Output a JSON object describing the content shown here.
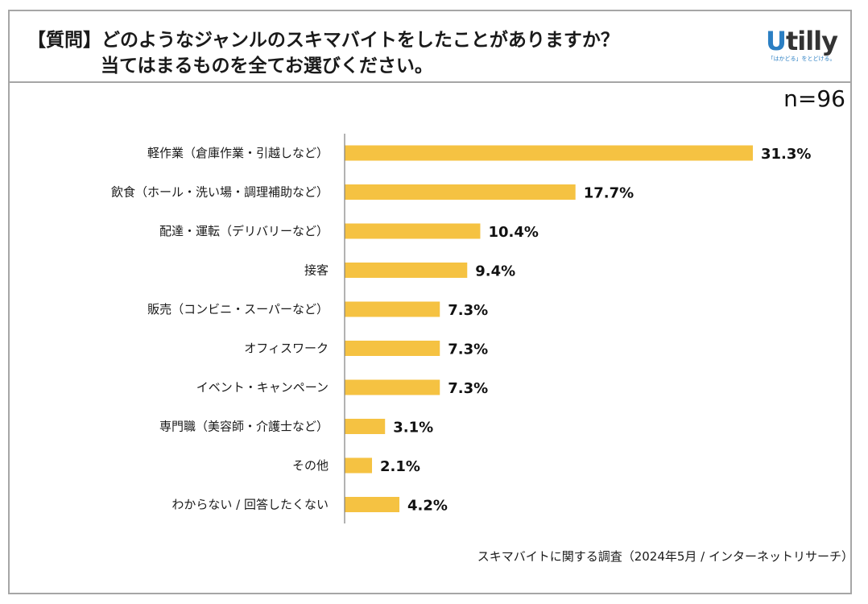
{
  "header": {
    "title_line1": "【質問】どのようなジャンルのスキマバイトをしたことがありますか？",
    "title_line2": "当てはまるものを全てお選びください。",
    "logo_text": "Utilly",
    "logo_tagline": "「はかどる」をとどける。"
  },
  "sample_size": "n=96",
  "footnote": "スキマバイトに関する調査（2024年5月 / インターネットリサーチ）",
  "colors": {
    "bar": "#f5c242",
    "axis": "#7f7f7f",
    "border": "#a6a6a6"
  },
  "chart_data": {
    "type": "bar",
    "orientation": "horizontal",
    "categories": [
      "軽作業（倉庫作業・引越しなど）",
      "飲食（ホール・洗い場・調理補助など）",
      "配達・運転（デリバリーなど）",
      "接客",
      "販売（コンビニ・スーパーなど）",
      "オフィスワーク",
      "イベント・キャンペーン",
      "専門職（美容師・介護士など）",
      "その他",
      "わからない / 回答したくない"
    ],
    "values": [
      31.3,
      17.7,
      10.4,
      9.4,
      7.3,
      7.3,
      7.3,
      3.1,
      2.1,
      4.2
    ],
    "labels": [
      "31.3%",
      "17.7%",
      "10.4%",
      "9.4%",
      "7.3%",
      "7.3%",
      "7.3%",
      "3.1%",
      "2.1%",
      "4.2%"
    ],
    "unit": "%",
    "xlim": [
      0,
      31.3
    ],
    "grid": false,
    "legend": "none"
  }
}
